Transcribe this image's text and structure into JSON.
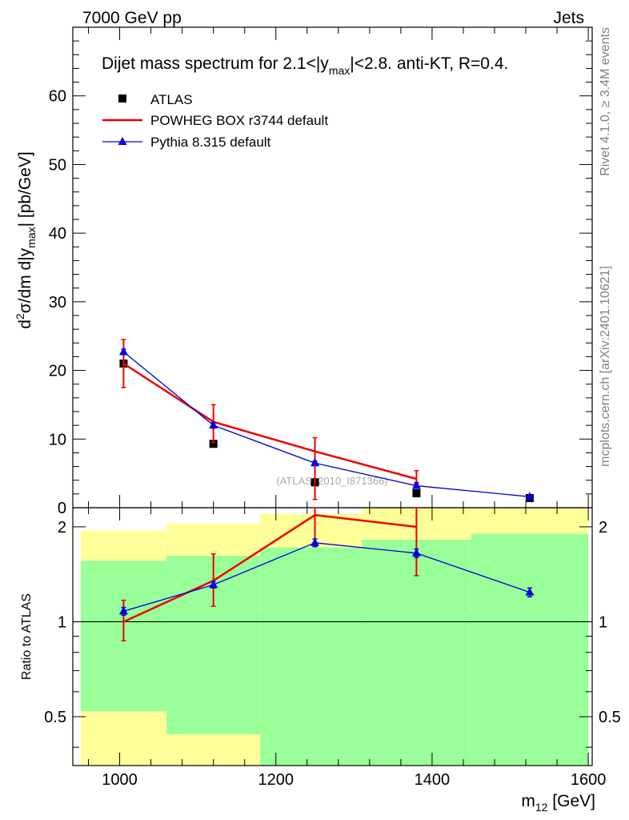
{
  "header": {
    "left": "7000 GeV pp",
    "right": "Jets"
  },
  "title": {
    "main": "Dijet mass spectrum for 2.1<|y",
    "sub": "max",
    "rest": "|<2.8.  anti-KT, R=0.4."
  },
  "side_labels": {
    "rivet": "Rivet 4.1.0, ≥ 3.4M events",
    "mcplots": "mcplots.cern.ch [arXiv:2401.10621]"
  },
  "watermark": "(ATLAS_2010_I871366)",
  "colors": {
    "atlas": "#000000",
    "powheg": "#ee0000",
    "pythia": "#0000dd",
    "band_yellow": "#ffff99",
    "band_green": "#99ff99"
  },
  "chart_data": [
    {
      "type": "scatter",
      "panel": "main",
      "ylabel": {
        "d": "d",
        "sup": "2",
        "mid": "σ/dm d|y",
        "sub": "max",
        "end": "| [pb/GeV]"
      },
      "xlim": [
        940,
        1605
      ],
      "ylim": [
        0,
        70
      ],
      "yticks": [
        0,
        10,
        20,
        30,
        40,
        50,
        60
      ],
      "ytick_labels": [
        "0",
        "10",
        "20",
        "30",
        "40",
        "50",
        "60"
      ],
      "legend": [
        {
          "key": "atlas",
          "label": "ATLAS"
        },
        {
          "key": "powheg",
          "label": "POWHEG BOX r3744 default"
        },
        {
          "key": "pythia",
          "label": "Pythia 8.315 default"
        }
      ],
      "series": [
        {
          "name": "ATLAS",
          "key": "atlas",
          "style": "markers",
          "x": [
            1005,
            1120,
            1250,
            1380,
            1525
          ],
          "values": [
            21.0,
            9.3,
            3.7,
            2.1,
            1.4
          ]
        },
        {
          "name": "POWHEG BOX r3744 default",
          "key": "powheg",
          "style": "line",
          "x": [
            1005,
            1120,
            1250,
            1380
          ],
          "values": [
            21.0,
            12.5,
            8.2,
            4.2
          ],
          "err_low": [
            3.5,
            3.0,
            7.0,
            0.5
          ],
          "err_high": [
            3.5,
            2.5,
            2.0,
            1.2
          ]
        },
        {
          "name": "Pythia 8.315 default",
          "key": "pythia",
          "style": "line-markers",
          "x": [
            1005,
            1120,
            1250,
            1380,
            1525
          ],
          "values": [
            22.7,
            12.0,
            6.5,
            3.2,
            1.6
          ],
          "err_low": [
            0.4,
            0.4,
            0.3,
            0.3,
            0.2
          ],
          "err_high": [
            0.4,
            0.4,
            0.3,
            0.3,
            0.2
          ]
        }
      ]
    },
    {
      "type": "line",
      "panel": "ratio",
      "ylabel": "Ratio to ATLAS",
      "xlabel": {
        "main": "m",
        "sub": "12",
        "end": " [GeV]"
      },
      "xlim": [
        940,
        1605
      ],
      "ylim": [
        0.35,
        2.3
      ],
      "yscale": "log",
      "xticks": [
        1000,
        1200,
        1400,
        1600
      ],
      "xtick_labels": [
        "1000",
        "1200",
        "1400",
        "1600"
      ],
      "yticks": [
        0.5,
        1,
        2
      ],
      "ytick_labels": [
        "0.5",
        "1",
        "2"
      ],
      "bands": {
        "edges": [
          950,
          1060,
          1180,
          1310,
          1450,
          1600
        ],
        "yellow_low": [
          0.35,
          0.35,
          0.35,
          0.35,
          0.35
        ],
        "yellow_high": [
          1.95,
          2.05,
          2.2,
          2.3,
          2.3
        ],
        "green_low": [
          0.52,
          0.44,
          0.35,
          0.35,
          0.35
        ],
        "green_high": [
          1.56,
          1.62,
          1.72,
          1.82,
          1.9
        ]
      },
      "series": [
        {
          "name": "POWHEG BOX r3744 default",
          "key": "powheg",
          "style": "line",
          "x": [
            1005,
            1120,
            1250,
            1380
          ],
          "values": [
            1.0,
            1.35,
            2.18,
            2.0
          ],
          "err_low": [
            0.13,
            0.23,
            0.42,
            0.6
          ],
          "err_high": [
            0.17,
            0.29,
            0.3,
            0.3
          ]
        },
        {
          "name": "Pythia 8.315 default",
          "key": "pythia",
          "style": "line-markers",
          "x": [
            1005,
            1120,
            1250,
            1380,
            1525
          ],
          "values": [
            1.08,
            1.31,
            1.78,
            1.65,
            1.24
          ],
          "err_low": [
            0.03,
            0.03,
            0.05,
            0.05,
            0.04
          ],
          "err_high": [
            0.03,
            0.03,
            0.05,
            0.05,
            0.04
          ]
        }
      ]
    }
  ]
}
